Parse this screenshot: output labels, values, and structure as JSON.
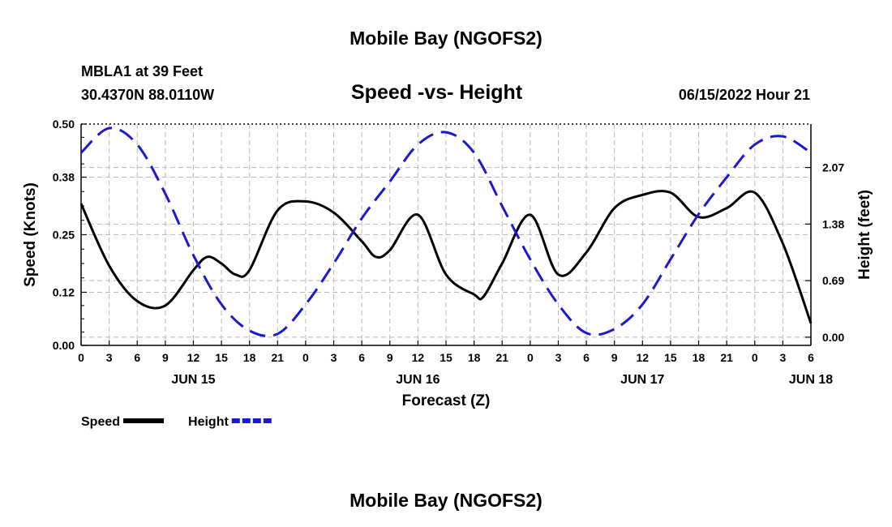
{
  "page": {
    "title_top": "Mobile Bay (NGOFS2)",
    "title_bottom": "Mobile Bay (NGOFS2)",
    "station_line1": "MBLA1 at 39 Feet",
    "station_line2": "30.4370N  88.0110W",
    "datetime": "06/15/2022 Hour 21"
  },
  "chart_data": {
    "type": "line",
    "title": "Speed -vs- Height",
    "xlabel": "Forecast (Z)",
    "ylabel": "Speed (Knots)",
    "y2label": "Height (feet)",
    "xlim": [
      0,
      78
    ],
    "ylim": [
      0,
      0.5
    ],
    "y2lim": [
      -0.1,
      2.6
    ],
    "x_ticks": [
      0,
      3,
      6,
      9,
      12,
      15,
      18,
      21,
      24,
      27,
      30,
      33,
      36,
      39,
      42,
      45,
      48,
      51,
      54,
      57,
      60,
      63,
      66,
      69,
      72,
      75,
      78
    ],
    "x_tick_labels": [
      "0",
      "3",
      "6",
      "9",
      "12",
      "15",
      "18",
      "21",
      "0",
      "3",
      "6",
      "9",
      "12",
      "15",
      "18",
      "21",
      "0",
      "3",
      "6",
      "9",
      "12",
      "15",
      "18",
      "21",
      "0",
      "3",
      "6"
    ],
    "date_labels": [
      {
        "x": 12,
        "label": "JUN 15"
      },
      {
        "x": 36,
        "label": "JUN 16"
      },
      {
        "x": 60,
        "label": "JUN 17"
      },
      {
        "x": 78,
        "label": "JUN 18"
      }
    ],
    "y_ticks": [
      0.0,
      0.12,
      0.25,
      0.38,
      0.5
    ],
    "y_tick_labels": [
      "0.00",
      "0.12",
      "0.25",
      "0.38",
      "0.50"
    ],
    "y2_ticks": [
      0.0,
      0.69,
      1.38,
      2.07
    ],
    "y2_tick_labels": [
      "0.00",
      "0.69",
      "1.38",
      "2.07"
    ],
    "grid": true,
    "legend": [
      {
        "name": "Speed",
        "color": "#000000",
        "dash": "solid"
      },
      {
        "name": "Height",
        "color": "#1a1acc",
        "dash": "dashed"
      }
    ],
    "series": [
      {
        "name": "Speed",
        "axis": "left",
        "color": "#000000",
        "x": [
          0,
          3,
          6,
          9,
          12,
          13.5,
          15,
          16.5,
          18,
          21,
          24,
          27,
          30,
          31.5,
          33,
          36,
          39,
          42,
          43,
          45,
          48,
          51,
          54,
          57,
          60,
          63,
          66,
          69,
          72,
          75,
          78
        ],
        "y": [
          0.32,
          0.18,
          0.1,
          0.09,
          0.17,
          0.2,
          0.185,
          0.16,
          0.17,
          0.305,
          0.325,
          0.3,
          0.235,
          0.2,
          0.215,
          0.295,
          0.16,
          0.115,
          0.11,
          0.185,
          0.295,
          0.16,
          0.21,
          0.31,
          0.34,
          0.345,
          0.29,
          0.31,
          0.345,
          0.23,
          0.05
        ]
      },
      {
        "name": "Height",
        "axis": "right",
        "color": "#1a1acc",
        "x": [
          0,
          3,
          6,
          9,
          12,
          15,
          18,
          21,
          24,
          27,
          30,
          33,
          36,
          39,
          42,
          45,
          48,
          51,
          54,
          57,
          60,
          63,
          66,
          69,
          72,
          75,
          78
        ],
        "y": [
          2.25,
          2.55,
          2.35,
          1.75,
          1.0,
          0.4,
          0.08,
          0.04,
          0.4,
          0.9,
          1.45,
          1.9,
          2.35,
          2.5,
          2.25,
          1.6,
          0.95,
          0.4,
          0.05,
          0.1,
          0.4,
          0.95,
          1.5,
          1.95,
          2.35,
          2.45,
          2.25
        ]
      }
    ]
  }
}
